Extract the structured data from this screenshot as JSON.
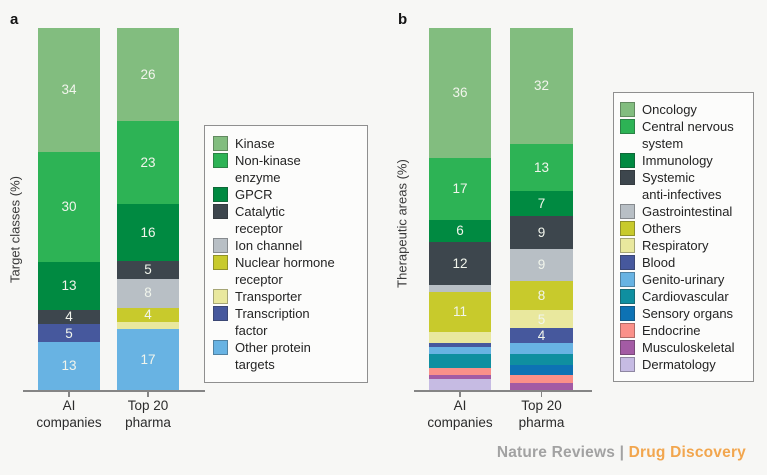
{
  "chart_data": [
    {
      "type": "stacked-bar",
      "panel_label": "a",
      "ylabel": "Target classes (%)",
      "axis_range": [
        0,
        100
      ],
      "grid": false,
      "legend_position": "right",
      "categories": [
        "AI\ncompanies",
        "Top 20\npharma"
      ],
      "series": [
        {
          "name": "Kinase",
          "legend": "Kinase",
          "color": "#82bd7f",
          "values": [
            34,
            26
          ],
          "labels": [
            "34",
            "26"
          ]
        },
        {
          "name": "Non-kinase enzyme",
          "legend": "Non-kinase\nenzyme",
          "color": "#2db355",
          "values": [
            30,
            23
          ],
          "labels": [
            "30",
            "23"
          ]
        },
        {
          "name": "GPCR",
          "legend": "GPCR",
          "color": "#008a41",
          "values": [
            13,
            16
          ],
          "labels": [
            "13",
            "16"
          ]
        },
        {
          "name": "Catalytic receptor",
          "legend": "Catalytic\nreceptor",
          "color": "#3d464d",
          "values": [
            4,
            5
          ],
          "labels": [
            "4",
            "5"
          ]
        },
        {
          "name": "Ion channel",
          "legend": "Ion channel",
          "color": "#b8bfc5",
          "values": [
            0,
            8
          ],
          "labels": [
            "",
            "8"
          ]
        },
        {
          "name": "Nuclear hormone receptor",
          "legend": "Nuclear hormone\nreceptor",
          "color": "#c8ca2c",
          "values": [
            0,
            4
          ],
          "labels": [
            "",
            "4"
          ]
        },
        {
          "name": "Transporter",
          "legend": "Transporter",
          "color": "#e9e89e",
          "values": [
            0,
            2
          ],
          "labels": [
            "",
            ""
          ]
        },
        {
          "name": "Transcription factor",
          "legend": "Transcription\nfactor",
          "color": "#46589d",
          "values": [
            5,
            0
          ],
          "labels": [
            "5",
            ""
          ]
        },
        {
          "name": "Other protein targets",
          "legend": "Other protein\ntargets",
          "color": "#68b3e3",
          "values": [
            13,
            17
          ],
          "labels": [
            "13",
            "17"
          ]
        }
      ]
    },
    {
      "type": "stacked-bar",
      "panel_label": "b",
      "ylabel": "Therapeutic areas (%)",
      "axis_range": [
        0,
        100
      ],
      "grid": false,
      "legend_position": "right",
      "categories": [
        "AI\ncompanies",
        "Top 20\npharma"
      ],
      "series": [
        {
          "name": "Oncology",
          "legend": "Oncology",
          "color": "#82bd7f",
          "values": [
            36,
            32
          ],
          "labels": [
            "36",
            "32"
          ]
        },
        {
          "name": "Central nervous system",
          "legend": "Central nervous\nsystem",
          "color": "#2db355",
          "values": [
            17,
            13
          ],
          "labels": [
            "17",
            "13"
          ]
        },
        {
          "name": "Immunology",
          "legend": "Immunology",
          "color": "#008a41",
          "values": [
            6,
            7
          ],
          "labels": [
            "6",
            "7"
          ]
        },
        {
          "name": "Systemic anti-infectives",
          "legend": "Systemic\nanti-infectives",
          "color": "#3d464d",
          "values": [
            12,
            9
          ],
          "labels": [
            "12",
            "9"
          ]
        },
        {
          "name": "Gastrointestinal",
          "legend": "Gastrointestinal",
          "color": "#b8bfc5",
          "values": [
            2,
            9
          ],
          "labels": [
            "",
            "9"
          ]
        },
        {
          "name": "Others",
          "legend": "Others",
          "color": "#c8ca2c",
          "values": [
            11,
            8
          ],
          "labels": [
            "11",
            "8"
          ]
        },
        {
          "name": "Respiratory",
          "legend": "Respiratory",
          "color": "#e9e89e",
          "values": [
            3,
            5
          ],
          "labels": [
            "",
            "5"
          ]
        },
        {
          "name": "Blood",
          "legend": "Blood",
          "color": "#46589d",
          "values": [
            1,
            4
          ],
          "labels": [
            "",
            "4"
          ]
        },
        {
          "name": "Genito-urinary",
          "legend": "Genito-urinary",
          "color": "#68b3e3",
          "values": [
            2,
            3
          ],
          "labels": [
            "",
            ""
          ]
        },
        {
          "name": "Cardiovascular",
          "legend": "Cardiovascular",
          "color": "#0f8fa0",
          "values": [
            4,
            3
          ],
          "labels": [
            "",
            ""
          ]
        },
        {
          "name": "Sensory organs",
          "legend": "Sensory organs",
          "color": "#0d72b4",
          "values": [
            0,
            3
          ],
          "labels": [
            "",
            ""
          ]
        },
        {
          "name": "Endocrine",
          "legend": "Endocrine",
          "color": "#fa9089",
          "values": [
            2,
            2
          ],
          "labels": [
            "",
            ""
          ]
        },
        {
          "name": "Musculoskeletal",
          "legend": "Musculoskeletal",
          "color": "#a35ba4",
          "values": [
            1,
            2
          ],
          "labels": [
            "",
            ""
          ]
        },
        {
          "name": "Dermatology",
          "legend": "Dermatology",
          "color": "#c6bbe3",
          "values": [
            3,
            0
          ],
          "labels": [
            "",
            ""
          ]
        }
      ]
    }
  ],
  "footer": {
    "journal": "Nature Reviews",
    "separator": " | ",
    "publication": "Drug Discovery",
    "journal_color": "#a2a2a2",
    "publication_color": "#f2a64e"
  }
}
